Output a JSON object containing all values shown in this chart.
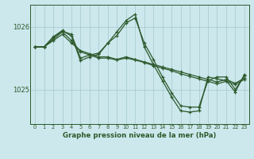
{
  "bg_color": "#cce8ec",
  "grid_color": "#aacdd4",
  "line_color": "#2d5a2d",
  "title": "Graphe pression niveau de la mer (hPa)",
  "xlim": [
    -0.5,
    23.5
  ],
  "ylim": [
    1024.45,
    1026.35
  ],
  "yticks": [
    1025,
    1026
  ],
  "xticks": [
    0,
    1,
    2,
    3,
    4,
    5,
    6,
    7,
    8,
    9,
    10,
    11,
    12,
    13,
    14,
    15,
    16,
    17,
    18,
    19,
    20,
    21,
    22,
    23
  ],
  "series": [
    [
      1025.68,
      1025.68,
      1025.78,
      1025.88,
      1025.74,
      1025.62,
      1025.57,
      1025.52,
      1025.52,
      1025.48,
      1025.52,
      1025.48,
      1025.44,
      1025.4,
      1025.36,
      1025.32,
      1025.28,
      1025.24,
      1025.2,
      1025.16,
      1025.12,
      1025.16,
      1025.1,
      1025.18
    ],
    [
      1025.68,
      1025.68,
      1025.8,
      1025.92,
      1025.78,
      1025.6,
      1025.55,
      1025.5,
      1025.5,
      1025.47,
      1025.5,
      1025.47,
      1025.43,
      1025.38,
      1025.34,
      1025.3,
      1025.25,
      1025.21,
      1025.17,
      1025.13,
      1025.09,
      1025.13,
      1025.08,
      1025.16
    ],
    [
      1025.68,
      1025.68,
      1025.83,
      1025.93,
      1025.88,
      1025.5,
      1025.55,
      1025.58,
      1025.74,
      1025.86,
      1026.06,
      1026.14,
      1025.74,
      1025.48,
      1025.2,
      1024.95,
      1024.74,
      1024.72,
      1024.72,
      1025.14,
      1025.2,
      1025.2,
      1025.0,
      1025.22
    ],
    [
      1025.68,
      1025.68,
      1025.84,
      1025.94,
      1025.85,
      1025.46,
      1025.52,
      1025.56,
      1025.74,
      1025.92,
      1026.1,
      1026.2,
      1025.68,
      1025.4,
      1025.14,
      1024.88,
      1024.66,
      1024.64,
      1024.66,
      1025.2,
      1025.17,
      1025.14,
      1024.96,
      1025.24
    ]
  ]
}
